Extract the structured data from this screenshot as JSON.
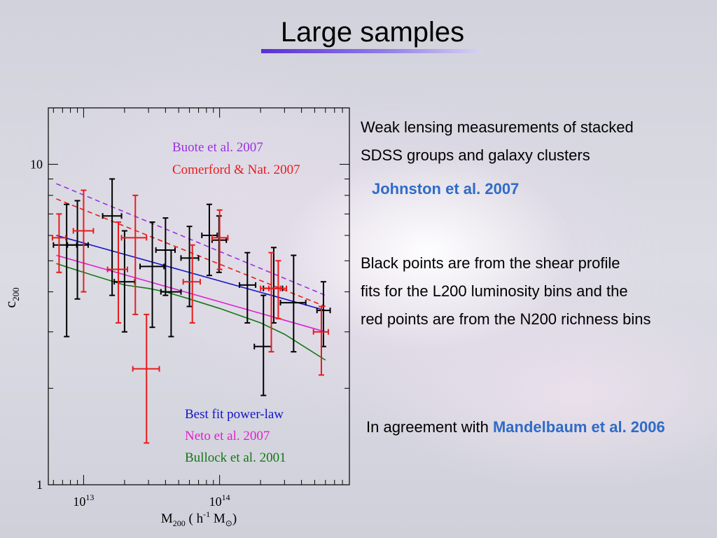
{
  "slide": {
    "title": "Large samples",
    "text_block_1": [
      "Weak lensing measurements of stacked",
      "SDSS groups and galaxy clusters"
    ],
    "reference_1": "Johnston et al. 2007",
    "text_block_2": [
      "Black points are from the shear profile",
      "fits for the L200 luminosity bins and the",
      "red points are from the N200 richness bins"
    ],
    "text_block_3_prefix": "In agreement with ",
    "reference_2": "Mandelbaum et al. 2006",
    "colors": {
      "title_underline": "#5a2fd6",
      "reference": "#2f6bc7"
    }
  },
  "chart_data": {
    "type": "scatter",
    "xscale": "log",
    "yscale": "log",
    "xlim": [
      5500000000000.0,
      900000000000000.0
    ],
    "ylim": [
      1,
      15
    ],
    "xticks": [
      {
        "value": 10000000000000.0,
        "base": "10",
        "exp": "13"
      },
      {
        "value": 100000000000000.0,
        "base": "10",
        "exp": "14"
      }
    ],
    "yticks": [
      {
        "value": 1,
        "label": "1"
      },
      {
        "value": 10,
        "label": "10"
      }
    ],
    "xlabel": {
      "main": "M",
      "sub": "200",
      "mid": "( h",
      "sup": "-1",
      "unit": "M",
      "unit_sub": "⊙",
      "end": ")"
    },
    "ylabel": {
      "main": "c",
      "sub": "200"
    },
    "legend_top": [
      {
        "label": "Buote et al. 2007",
        "color": "#9b30e0",
        "style": "dashed"
      },
      {
        "label": "Comerford & Nat. 2007",
        "color": "#e81c1c",
        "style": "dashed"
      }
    ],
    "legend_bottom": [
      {
        "label": "Best fit power-law",
        "color": "#1414c8",
        "style": "solid"
      },
      {
        "label": "Neto et al. 2007",
        "color": "#e020d0",
        "style": "solid"
      },
      {
        "label": "Bullock et al. 2001",
        "color": "#147814",
        "style": "solid"
      }
    ],
    "series_points": [
      {
        "name": "L200 luminosity bins",
        "color": "#000000",
        "points": [
          {
            "x": 7500000000000.0,
            "y": 5.6,
            "ylo": 2.9,
            "yhi": 7.5,
            "xlo": 6000000000000.0,
            "xhi": 8900000000000.0
          },
          {
            "x": 9000000000000.0,
            "y": 5.6,
            "ylo": 3.8,
            "yhi": 7.7,
            "xlo": 7600000000000.0,
            "xhi": 10800000000000.0
          },
          {
            "x": 16200000000000.0,
            "y": 6.9,
            "ylo": 3.9,
            "yhi": 9.0,
            "xlo": 13800000000000.0,
            "xhi": 19000000000000.0
          },
          {
            "x": 20000000000000.0,
            "y": 4.3,
            "ylo": 3.0,
            "yhi": 6.2,
            "xlo": 16800000000000.0,
            "xhi": 23800000000000.0
          },
          {
            "x": 32000000000000.0,
            "y": 4.8,
            "ylo": 3.1,
            "yhi": 6.6,
            "xlo": 26000000000000.0,
            "xhi": 39000000000000.0
          },
          {
            "x": 40000000000000.0,
            "y": 5.4,
            "ylo": 3.9,
            "yhi": 6.8,
            "xlo": 34000000000000.0,
            "xhi": 47000000000000.0
          },
          {
            "x": 44000000000000.0,
            "y": 4.0,
            "ylo": 2.9,
            "yhi": 5.4,
            "xlo": 37000000000000.0,
            "xhi": 52000000000000.0
          },
          {
            "x": 60000000000000.0,
            "y": 5.1,
            "ylo": 3.6,
            "yhi": 6.4,
            "xlo": 52000000000000.0,
            "xhi": 70000000000000.0
          },
          {
            "x": 84000000000000.0,
            "y": 6.0,
            "ylo": 4.5,
            "yhi": 7.5,
            "xlo": 74000000000000.0,
            "xhi": 96000000000000.0
          },
          {
            "x": 99000000000000.0,
            "y": 5.8,
            "ylo": 4.6,
            "yhi": 6.9,
            "xlo": 88000000000000.0,
            "xhi": 112000000000000.0
          },
          {
            "x": 160000000000000.0,
            "y": 4.2,
            "ylo": 3.2,
            "yhi": 5.3,
            "xlo": 140000000000000.0,
            "xhi": 184000000000000.0
          },
          {
            "x": 210000000000000.0,
            "y": 2.7,
            "ylo": 1.9,
            "yhi": 3.9,
            "xlo": 180000000000000.0,
            "xhi": 240000000000000.0
          },
          {
            "x": 250000000000000.0,
            "y": 4.1,
            "ylo": 3.2,
            "yhi": 5.5,
            "xlo": 210000000000000.0,
            "xhi": 290000000000000.0
          },
          {
            "x": 350000000000000.0,
            "y": 3.7,
            "ylo": 2.6,
            "yhi": 5.2,
            "xlo": 280000000000000.0,
            "xhi": 430000000000000.0
          },
          {
            "x": 580000000000000.0,
            "y": 3.5,
            "ylo": 2.7,
            "yhi": 4.3,
            "xlo": 520000000000000.0,
            "xhi": 650000000000000.0
          }
        ]
      },
      {
        "name": "N200 richness bins",
        "color": "#e81c1c",
        "points": [
          {
            "x": 6600000000000.0,
            "y": 5.9,
            "ylo": 4.6,
            "yhi": 7.0,
            "xlo": 5900000000000.0,
            "xhi": 7400000000000.0
          },
          {
            "x": 10000000000000.0,
            "y": 6.2,
            "ylo": 4.0,
            "yhi": 8.3,
            "xlo": 8400000000000.0,
            "xhi": 11800000000000.0
          },
          {
            "x": 18000000000000.0,
            "y": 4.7,
            "ylo": 3.2,
            "yhi": 6.6,
            "xlo": 15000000000000.0,
            "xhi": 21000000000000.0
          },
          {
            "x": 24000000000000.0,
            "y": 5.9,
            "ylo": 3.4,
            "yhi": 8.0,
            "xlo": 19000000000000.0,
            "xhi": 29000000000000.0
          },
          {
            "x": 29000000000000.0,
            "y": 2.3,
            "ylo": 1.35,
            "yhi": 3.4,
            "xlo": 23000000000000.0,
            "xhi": 36000000000000.0
          },
          {
            "x": 63000000000000.0,
            "y": 4.3,
            "ylo": 3.2,
            "yhi": 5.6,
            "xlo": 54000000000000.0,
            "xhi": 72000000000000.0
          },
          {
            "x": 100000000000000.0,
            "y": 5.9,
            "ylo": 4.7,
            "yhi": 7.2,
            "xlo": 88000000000000.0,
            "xhi": 115000000000000.0
          },
          {
            "x": 240000000000000.0,
            "y": 4.1,
            "ylo": 2.6,
            "yhi": 5.3,
            "xlo": 200000000000000.0,
            "xhi": 280000000000000.0
          },
          {
            "x": 270000000000000.0,
            "y": 4.1,
            "ylo": 3.3,
            "yhi": 5.0,
            "xlo": 230000000000000.0,
            "xhi": 310000000000000.0
          },
          {
            "x": 560000000000000.0,
            "y": 3.0,
            "ylo": 2.2,
            "yhi": 3.6,
            "xlo": 490000000000000.0,
            "xhi": 630000000000000.0
          }
        ]
      }
    ],
    "series_lines": [
      {
        "name": "Buote et al. 2007",
        "color": "#9b30e0",
        "dash": true,
        "x": [
          6300000000000.0,
          600000000000000.0
        ],
        "y": [
          8.7,
          3.9
        ]
      },
      {
        "name": "Comerford & Nat. 2007",
        "color": "#e81c1c",
        "dash": true,
        "x": [
          6300000000000.0,
          600000000000000.0
        ],
        "y": [
          7.8,
          3.6
        ]
      },
      {
        "name": "Best fit power-law",
        "color": "#1414c8",
        "dash": false,
        "x": [
          6300000000000.0,
          600000000000000.0
        ],
        "y": [
          6.0,
          3.5
        ]
      },
      {
        "name": "Neto et al. 2007",
        "color": "#e020d0",
        "dash": false,
        "x": [
          6300000000000.0,
          600000000000000.0
        ],
        "y": [
          5.2,
          3.0
        ]
      },
      {
        "name": "Bullock et al. 2001",
        "color": "#147814",
        "dash": false,
        "x": [
          6300000000000.0,
          10000000000000.0,
          20000000000000.0,
          30000000000000.0,
          40000000000000.0,
          60000000000000.0,
          100000000000000.0,
          200000000000000.0,
          300000000000000.0,
          600000000000000.0
        ],
        "y": [
          4.9,
          4.6,
          4.2,
          4.1,
          4.0,
          3.8,
          3.55,
          3.2,
          2.95,
          2.45
        ]
      }
    ]
  }
}
